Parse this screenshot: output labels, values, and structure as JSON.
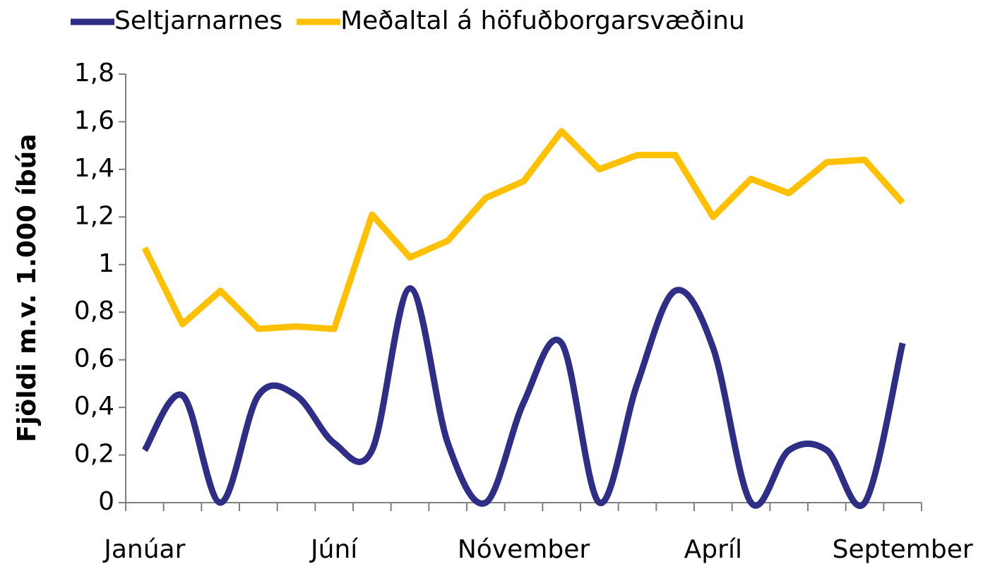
{
  "chart_data": {
    "type": "line",
    "ylabel": "Fjöldi m.v. 1.000 íbúa",
    "categories": [
      "Janúar",
      null,
      null,
      null,
      null,
      "Júní",
      null,
      null,
      null,
      null,
      "Nóvember",
      null,
      null,
      null,
      null,
      "Apríl",
      null,
      null,
      null,
      null,
      "September"
    ],
    "series": [
      {
        "name": "Seltjarnarnes",
        "color": "#2e2e87",
        "smooth": true,
        "values": [
          0.22,
          0.45,
          0,
          0.45,
          0.45,
          0.25,
          0.22,
          0.9,
          0.25,
          0,
          0.42,
          0.67,
          0,
          0.5,
          0.89,
          0.65,
          0,
          0.22,
          0.22,
          0,
          0.67
        ]
      },
      {
        "name": "Meðaltal á höfuðborgarsvæðinu",
        "color": "#ffc000",
        "smooth": false,
        "values": [
          1.07,
          0.75,
          0.89,
          0.73,
          0.74,
          0.73,
          1.21,
          1.03,
          1.1,
          1.28,
          1.35,
          1.56,
          1.4,
          1.46,
          1.46,
          1.2,
          1.36,
          1.3,
          1.43,
          1.44,
          1.26
        ]
      }
    ],
    "ylim": [
      0,
      1.8
    ],
    "yticks": [
      0,
      {
        "value": 0.2,
        "label": "0,2"
      },
      {
        "value": 0.4,
        "label": "0,4"
      },
      {
        "value": 0.6,
        "label": "0,6"
      },
      {
        "value": 0.8,
        "label": "0,8"
      },
      1,
      {
        "value": 1.2,
        "label": "1,2"
      },
      {
        "value": 1.4,
        "label": "1,4"
      },
      {
        "value": 1.6,
        "label": "1,6"
      },
      {
        "value": 1.8,
        "label": "1,8"
      }
    ],
    "grid": false,
    "legend": "top"
  }
}
